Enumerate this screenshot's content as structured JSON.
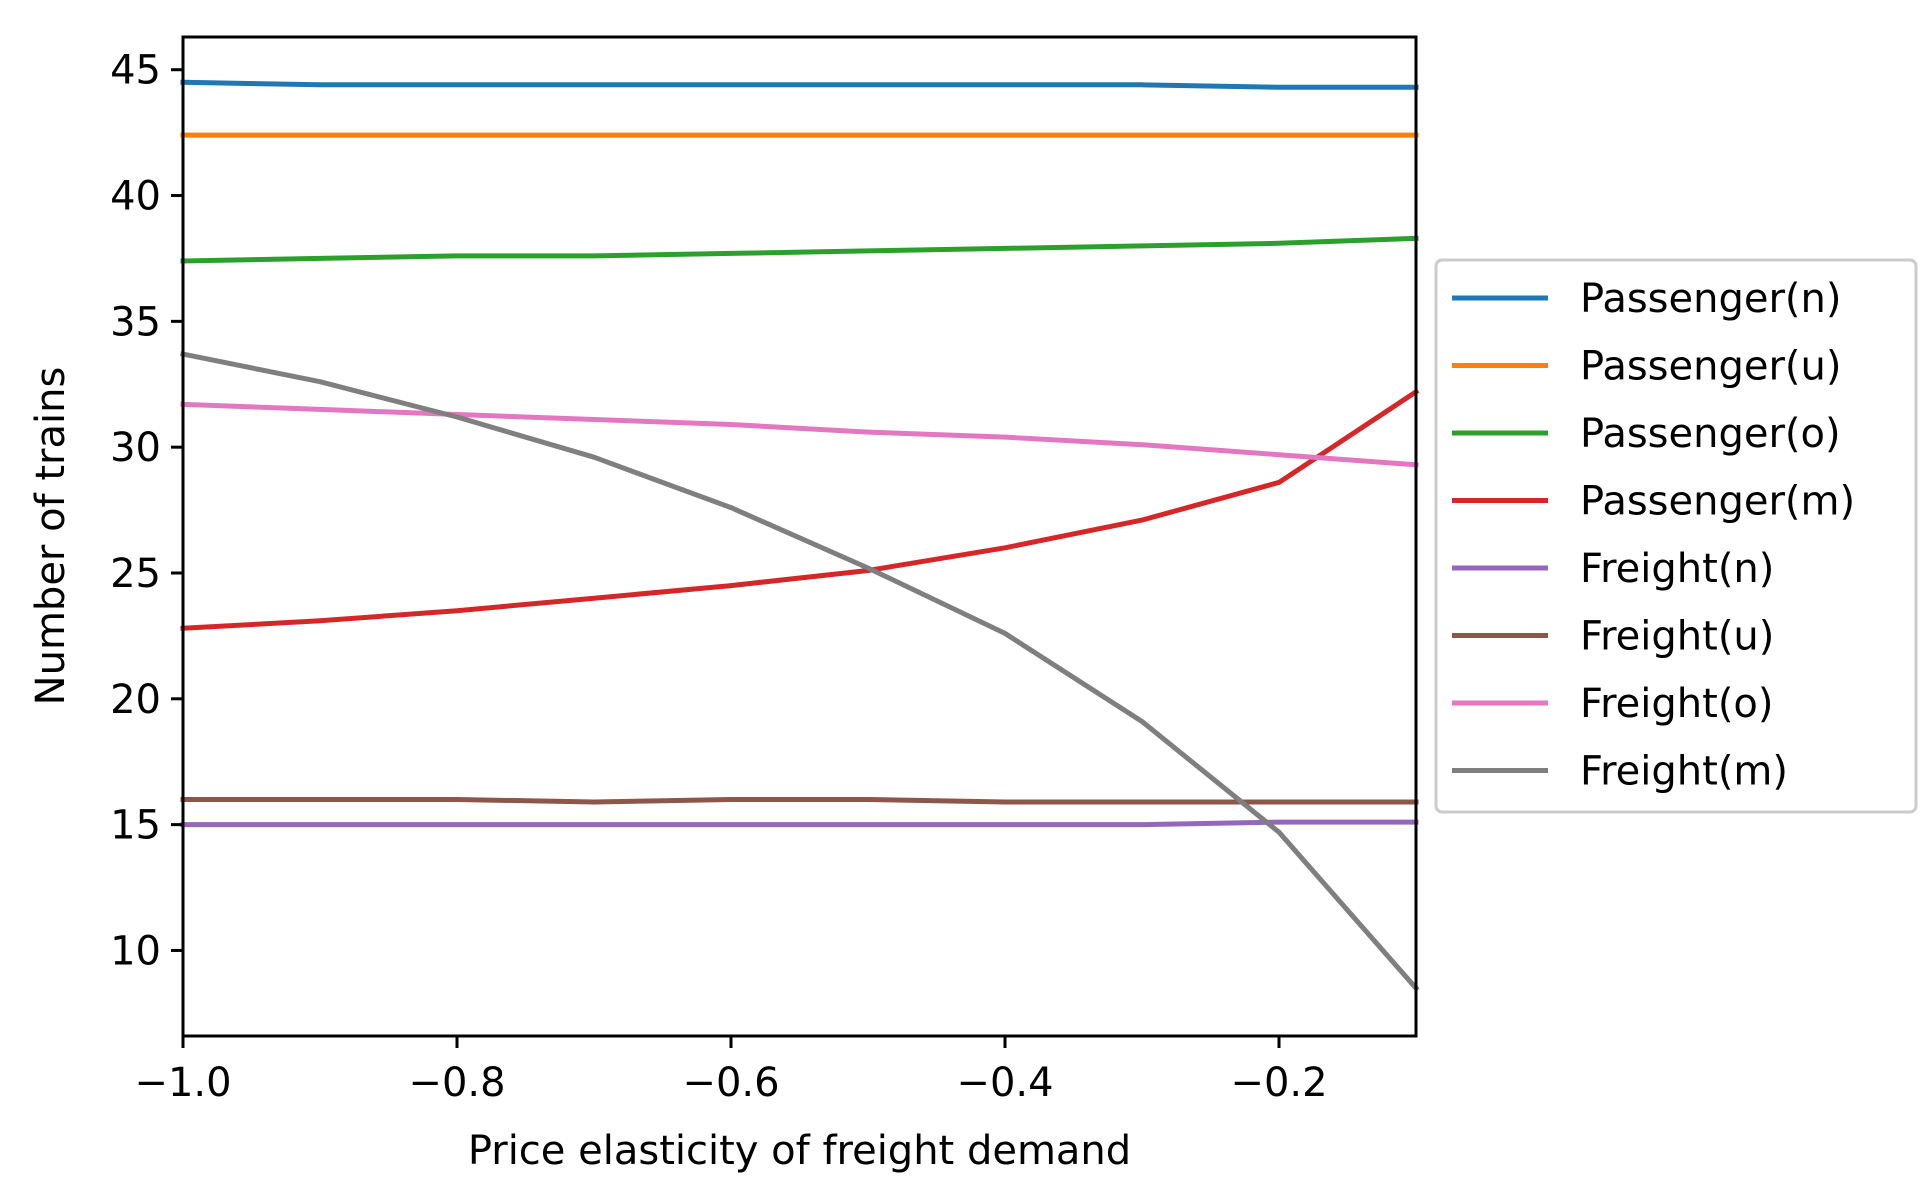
{
  "chart_data": {
    "type": "line",
    "title": "",
    "xlabel": "Price elasticity of freight demand",
    "ylabel": "Number of trains",
    "xlim": [
      -1.0,
      -0.1
    ],
    "ylim": [
      6.6,
      46.3
    ],
    "grid": false,
    "legend_position": "center right, outside plot",
    "x_ticks": [
      -1.0,
      -0.8,
      -0.6,
      -0.4,
      -0.2
    ],
    "x_tick_labels": [
      "−1.0",
      "−0.8",
      "−0.6",
      "−0.4",
      "−0.2"
    ],
    "y_ticks": [
      10,
      15,
      20,
      25,
      30,
      35,
      40,
      45
    ],
    "y_tick_labels": [
      "10",
      "15",
      "20",
      "25",
      "30",
      "35",
      "40",
      "45"
    ],
    "x": [
      -1.0,
      -0.9,
      -0.8,
      -0.7,
      -0.6,
      -0.5,
      -0.4,
      -0.3,
      -0.2,
      -0.1
    ],
    "series": [
      {
        "name": "Passenger(n)",
        "color": "#1f77b4",
        "values": [
          44.5,
          44.4,
          44.4,
          44.4,
          44.4,
          44.4,
          44.4,
          44.4,
          44.3,
          44.3
        ]
      },
      {
        "name": "Passenger(u)",
        "color": "#ff7f0e",
        "values": [
          42.4,
          42.4,
          42.4,
          42.4,
          42.4,
          42.4,
          42.4,
          42.4,
          42.4,
          42.4
        ]
      },
      {
        "name": "Passenger(o)",
        "color": "#2ca02c",
        "values": [
          37.4,
          37.5,
          37.6,
          37.6,
          37.7,
          37.8,
          37.9,
          38.0,
          38.1,
          38.3
        ]
      },
      {
        "name": "Passenger(m)",
        "color": "#d62728",
        "values": [
          22.8,
          23.1,
          23.5,
          24.0,
          24.5,
          25.1,
          26.0,
          27.1,
          28.6,
          32.2
        ]
      },
      {
        "name": "Freight(n)",
        "color": "#9467bd",
        "values": [
          15.0,
          15.0,
          15.0,
          15.0,
          15.0,
          15.0,
          15.0,
          15.0,
          15.1,
          15.1
        ]
      },
      {
        "name": "Freight(u)",
        "color": "#8c564b",
        "values": [
          16.0,
          16.0,
          16.0,
          15.9,
          16.0,
          16.0,
          15.9,
          15.9,
          15.9,
          15.9
        ]
      },
      {
        "name": "Freight(o)",
        "color": "#e377c2",
        "values": [
          31.7,
          31.5,
          31.3,
          31.1,
          30.9,
          30.6,
          30.4,
          30.1,
          29.7,
          29.3
        ]
      },
      {
        "name": "Freight(m)",
        "color": "#7f7f7f",
        "values": [
          33.7,
          32.6,
          31.2,
          29.6,
          27.6,
          25.2,
          22.6,
          19.1,
          14.7,
          8.5
        ]
      }
    ]
  }
}
